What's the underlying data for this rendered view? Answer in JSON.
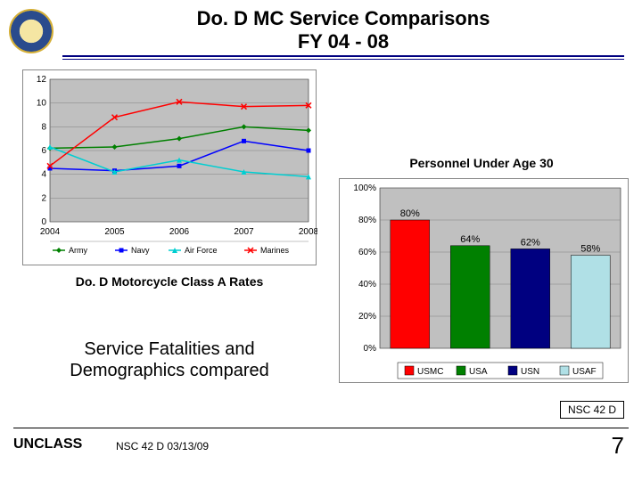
{
  "title": {
    "line1": "Do. D MC Service Comparisons",
    "line2": "FY 04 - 08"
  },
  "chart1": {
    "type": "line",
    "caption": "Do. D Motorcycle Class A Rates",
    "x_categories": [
      "2004",
      "2005",
      "2006",
      "2007",
      "2008"
    ],
    "y_ticks": [
      0,
      2,
      4,
      6,
      8,
      10,
      12
    ],
    "ylim": [
      0,
      12
    ],
    "series": [
      {
        "name": "Army",
        "color": "#008000",
        "marker": "diamond",
        "values": [
          6.2,
          6.3,
          7.0,
          8.0,
          7.7
        ]
      },
      {
        "name": "Navy",
        "color": "#0000ff",
        "marker": "square",
        "values": [
          4.5,
          4.3,
          4.7,
          6.8,
          6.0
        ]
      },
      {
        "name": "Air Force",
        "color": "#00ced1",
        "marker": "triangle",
        "values": [
          6.3,
          4.2,
          5.2,
          4.2,
          3.8
        ]
      },
      {
        "name": "Marines",
        "color": "#ff0000",
        "marker": "x",
        "values": [
          4.7,
          8.8,
          10.1,
          9.7,
          9.8
        ]
      }
    ],
    "legend_labels": [
      "Army",
      "Navy",
      "Air Force",
      "Marines"
    ],
    "plot_bg": "#c0c0c0",
    "grid_color": "#808080",
    "tick_fontsize": 10,
    "legend_fontsize": 9
  },
  "chart2": {
    "type": "bar",
    "caption": "Personnel Under Age 30",
    "categories": [
      "USMC",
      "USA",
      "USN",
      "USAF"
    ],
    "values": [
      80,
      64,
      62,
      58
    ],
    "value_labels": [
      "80%",
      "64%",
      "62%",
      "58%"
    ],
    "bar_colors": [
      "#ff0000",
      "#008000",
      "#000080",
      "#b0e0e6"
    ],
    "y_ticks": [
      0,
      20,
      40,
      60,
      80,
      100
    ],
    "y_tick_labels": [
      "0%",
      "20%",
      "40%",
      "60%",
      "80%",
      "100%"
    ],
    "ylim": [
      0,
      100
    ],
    "plot_bg": "#c0c0c0",
    "grid_color": "#808080",
    "tick_fontsize": 10,
    "legend_boxes": [
      {
        "label": "USMC",
        "color": "#ff0000"
      },
      {
        "label": "USA",
        "color": "#008000"
      },
      {
        "label": "USN",
        "color": "#000080"
      },
      {
        "label": "USAF",
        "color": "#b0e0e6"
      }
    ]
  },
  "subtitle": {
    "line1": "Service Fatalities and",
    "line2": "Demographics compared"
  },
  "nsc_box": "NSC 42 D",
  "footer": {
    "unclass": "UNCLASS",
    "center": "NSC 42 D 03/13/09",
    "page": "7"
  }
}
